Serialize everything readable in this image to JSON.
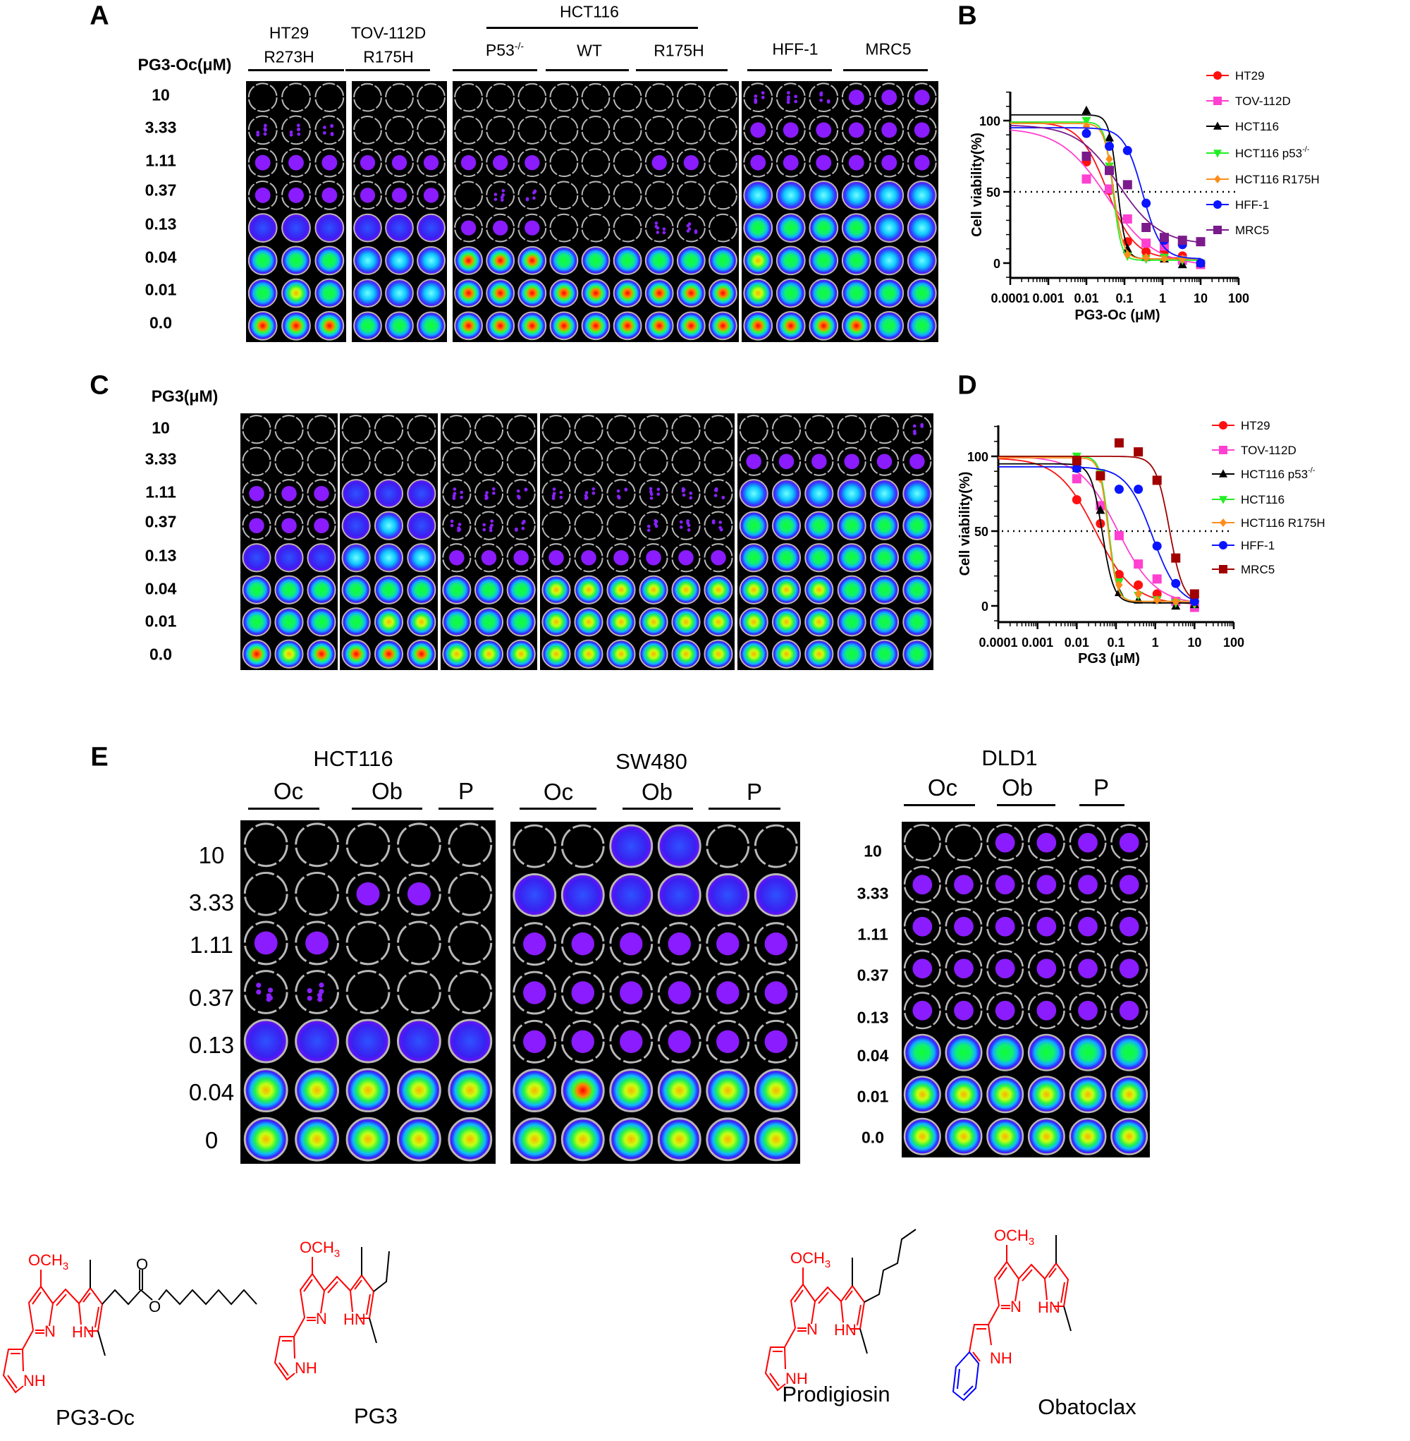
{
  "panel_letters": {
    "A": "A",
    "B": "B",
    "C": "C",
    "D": "D",
    "E": "E"
  },
  "panelA": {
    "unit_label": "PG3-Oc(μM)",
    "headers": {
      "ht29_1": "HT29",
      "ht29_2": "R273H",
      "tov_1": "TOV-112D",
      "tov_2": "R175H",
      "hct116": "HCT116",
      "p53": "P53",
      "p53_sup": "-/-",
      "wt": "WT",
      "r175h": "R175H",
      "hff": "HFF-1",
      "mrc5": "MRC5"
    },
    "rows": [
      "10",
      "3.33",
      "1.11",
      "0.37",
      "0.13",
      "0.04",
      "0.01",
      "0.0"
    ],
    "plates": [
      [
        "000",
        "111",
        "222",
        "222",
        "333",
        "555",
        "565",
        "777"
      ],
      [
        "000",
        "000",
        "222",
        "222",
        "333",
        "444",
        "444",
        "555"
      ],
      [
        "000000000",
        "000000000",
        "222000220",
        "011000000",
        "222000110",
        "777555555",
        "777777777",
        "777777777"
      ],
      [
        "111222",
        "222222",
        "222222",
        "444444",
        "555544",
        "655544",
        "655555",
        "777755"
      ]
    ]
  },
  "panelC": {
    "unit_label": "PG3(μM)",
    "rows": [
      "10",
      "3.33",
      "1.11",
      "0.37",
      "0.13",
      "0.04",
      "0.01",
      "0.0"
    ],
    "plates": [
      [
        "000",
        "000",
        "222",
        "222",
        "333",
        "555",
        "555",
        "767"
      ],
      [
        "000",
        "000",
        "333",
        "343",
        "444",
        "555",
        "566",
        "777"
      ],
      [
        "000",
        "000",
        "111",
        "111",
        "222",
        "555",
        "555",
        "666"
      ],
      [
        "000000",
        "000000",
        "111111",
        "000111",
        "222222",
        "666666",
        "666666",
        "666666"
      ],
      [
        "000001",
        "222222",
        "444444",
        "555555",
        "555555",
        "666555",
        "666555",
        "666555"
      ]
    ]
  },
  "panelE": {
    "groups": [
      {
        "title": "HCT116",
        "cols": [
          "Oc",
          "Ob",
          "P"
        ]
      },
      {
        "title": "SW480",
        "cols": [
          "Oc",
          "Ob",
          "P"
        ]
      },
      {
        "title": "DLD1",
        "cols": [
          "Oc",
          "Ob",
          "P"
        ]
      }
    ],
    "rows_left": [
      "10",
      "3.33",
      "1.11",
      "0.37",
      "0.13",
      "0.04",
      "0"
    ],
    "rows_dld1": [
      "10",
      "3.33",
      "1.11",
      "0.37",
      "0.13",
      "0.04",
      "0.01",
      "0.0"
    ],
    "plates": [
      [
        "00000",
        "00220",
        "22000",
        "11000",
        "33333",
        "66666",
        "66666"
      ],
      [
        "003300",
        "333333",
        "222222",
        "222222",
        "222222",
        "676666",
        "666666"
      ],
      [
        "002222",
        "222222",
        "222222",
        "222222",
        "222222",
        "555555",
        "666666",
        "666666"
      ]
    ]
  },
  "chart_data": [
    {
      "panel": "B",
      "type": "line",
      "xlabel": "PG3-Oc (μM)",
      "ylabel": "Cell viability(%)",
      "xscale": "log",
      "xlim": [
        0.0001,
        100
      ],
      "ylim": [
        -10,
        120
      ],
      "xticks": [
        "0.0001",
        "0.001",
        "0.01",
        "0.1",
        "1",
        "10",
        "100"
      ],
      "yticks": [
        "0",
        "50",
        "100"
      ],
      "reference_line": 50,
      "legend": "right",
      "x": [
        0.01,
        0.04,
        0.12,
        0.37,
        1.11,
        3.33,
        10
      ],
      "series": [
        {
          "name": "HT29",
          "sup": "",
          "color": "#ff1010",
          "marker": "circle",
          "values": [
            71,
            51,
            15,
            8,
            8,
            5,
            0
          ],
          "curve": {
            "top": 99,
            "bottom": 3,
            "ec50": 0.035,
            "hill": 1.2
          }
        },
        {
          "name": "TOV-112D",
          "sup": "",
          "color": "#ff40d0",
          "marker": "square",
          "values": [
            59,
            52,
            31,
            14,
            12,
            2,
            -1
          ],
          "curve": {
            "top": 95,
            "bottom": -2,
            "ec50": 0.035,
            "hill": 0.7
          }
        },
        {
          "name": "HCT116",
          "sup": "",
          "color": "#000000",
          "marker": "triangle-up",
          "values": [
            107,
            88,
            10,
            4,
            3,
            -1,
            0
          ],
          "curve": {
            "top": 104,
            "bottom": 3,
            "ec50": 0.065,
            "hill": 4
          }
        },
        {
          "name": "HCT116 p53",
          "sup": "-/-",
          "color": "#22ee22",
          "marker": "triangle-down",
          "values": [
            100,
            68,
            5,
            3,
            4,
            2,
            0
          ],
          "curve": {
            "top": 99,
            "bottom": 2,
            "ec50": 0.05,
            "hill": 4
          }
        },
        {
          "name": "HCT116 R175H",
          "sup": "",
          "color": "#ff8c1a",
          "marker": "diamond",
          "values": [
            96,
            73,
            6,
            4,
            3,
            3,
            0
          ],
          "curve": {
            "top": 98,
            "bottom": 3,
            "ec50": 0.052,
            "hill": 3.5
          }
        },
        {
          "name": "HFF-1",
          "sup": "",
          "color": "#0a14ff",
          "marker": "circle",
          "values": [
            91,
            82,
            79,
            42,
            16,
            13,
            0
          ],
          "curve": {
            "top": 95,
            "bottom": 3,
            "ec50": 0.3,
            "hill": 1.8
          }
        },
        {
          "name": "MRC5",
          "sup": "",
          "color": "#7b1a8a",
          "marker": "square",
          "values": [
            75,
            65,
            55,
            25,
            18,
            16,
            15
          ],
          "curve": {
            "top": 97,
            "bottom": 13,
            "ec50": 0.07,
            "hill": 0.8
          }
        }
      ]
    },
    {
      "panel": "D",
      "type": "line",
      "xlabel": "PG3 (μM)",
      "ylabel": "Cell viability(%)",
      "xscale": "log",
      "xlim": [
        0.0001,
        100
      ],
      "ylim": [
        -10,
        120
      ],
      "xticks": [
        "0.0001",
        "0.001",
        "0.01",
        "0.1",
        "1",
        "10",
        "100"
      ],
      "yticks": [
        "0",
        "50",
        "100"
      ],
      "reference_line": 50,
      "legend": "right",
      "x": [
        0.01,
        0.04,
        0.12,
        0.37,
        1.11,
        3.33,
        10
      ],
      "series": [
        {
          "name": "HT29",
          "sup": "",
          "color": "#ff1010",
          "marker": "circle",
          "values": [
            71,
            55,
            21,
            14,
            8,
            3,
            0
          ],
          "curve": {
            "top": 99,
            "bottom": 1,
            "ec50": 0.03,
            "hill": 0.9
          }
        },
        {
          "name": "TOV-112D",
          "sup": "",
          "color": "#ff40d0",
          "marker": "square",
          "values": [
            85,
            67,
            47,
            28,
            18,
            3,
            -1
          ],
          "curve": {
            "top": 100,
            "bottom": 1,
            "ec50": 0.11,
            "hill": 0.9
          }
        },
        {
          "name": "HCT116 p53",
          "sup": "-/-",
          "color": "#000000",
          "marker": "triangle-up",
          "values": [
            92,
            64,
            9,
            4,
            4,
            0,
            1
          ],
          "curve": {
            "top": 95,
            "bottom": 2,
            "ec50": 0.045,
            "hill": 3
          }
        },
        {
          "name": "HCT116",
          "sup": "",
          "color": "#22ee22",
          "marker": "triangle-down",
          "values": [
            100,
            89,
            16,
            7,
            4,
            2,
            1
          ],
          "curve": {
            "top": 100,
            "bottom": 3,
            "ec50": 0.065,
            "hill": 4
          }
        },
        {
          "name": "HCT116 R175H",
          "sup": "",
          "color": "#ff8c1a",
          "marker": "diamond",
          "values": [
            97,
            85,
            14,
            8,
            4,
            3,
            2
          ],
          "curve": {
            "top": 99,
            "bottom": 3,
            "ec50": 0.063,
            "hill": 4
          }
        },
        {
          "name": "HFF-1",
          "sup": "",
          "color": "#0a14ff",
          "marker": "circle",
          "values": [
            92,
            87,
            78,
            78,
            40,
            15,
            3
          ],
          "curve": {
            "top": 93,
            "bottom": 0,
            "ec50": 0.85,
            "hill": 1.3
          }
        },
        {
          "name": "MRC5",
          "sup": "",
          "color": "#a00000",
          "marker": "square",
          "values": [
            97,
            87,
            109,
            103,
            84,
            32,
            8
          ],
          "curve": {
            "top": 100,
            "bottom": 2,
            "ec50": 2.3,
            "hill": 2.5
          }
        }
      ]
    }
  ],
  "structures": [
    {
      "name": "PG3-Oc",
      "atoms": {
        "och3": "OCH",
        "sub3": "3",
        "n": "N",
        "hn": "HN",
        "nh": "NH",
        "o1": "O",
        "o2": "O"
      }
    },
    {
      "name": "PG3",
      "atoms": {
        "och3": "OCH",
        "sub3": "3",
        "n": "N",
        "hn": "HN",
        "nh": "NH"
      }
    },
    {
      "name": "Prodigiosin",
      "atoms": {
        "och3": "OCH",
        "sub3": "3",
        "n": "N",
        "hn": "HN",
        "nh": "NH"
      }
    },
    {
      "name": "Obatoclax",
      "atoms": {
        "och3": "OCH",
        "sub3": "3",
        "n": "N",
        "hn": "HN",
        "nh": "NH"
      }
    }
  ],
  "colors": {
    "core": "#ff0000",
    "indole": "#0000ff",
    "plate_bg": "#000000",
    "well_ring": "#b8b8b8"
  }
}
